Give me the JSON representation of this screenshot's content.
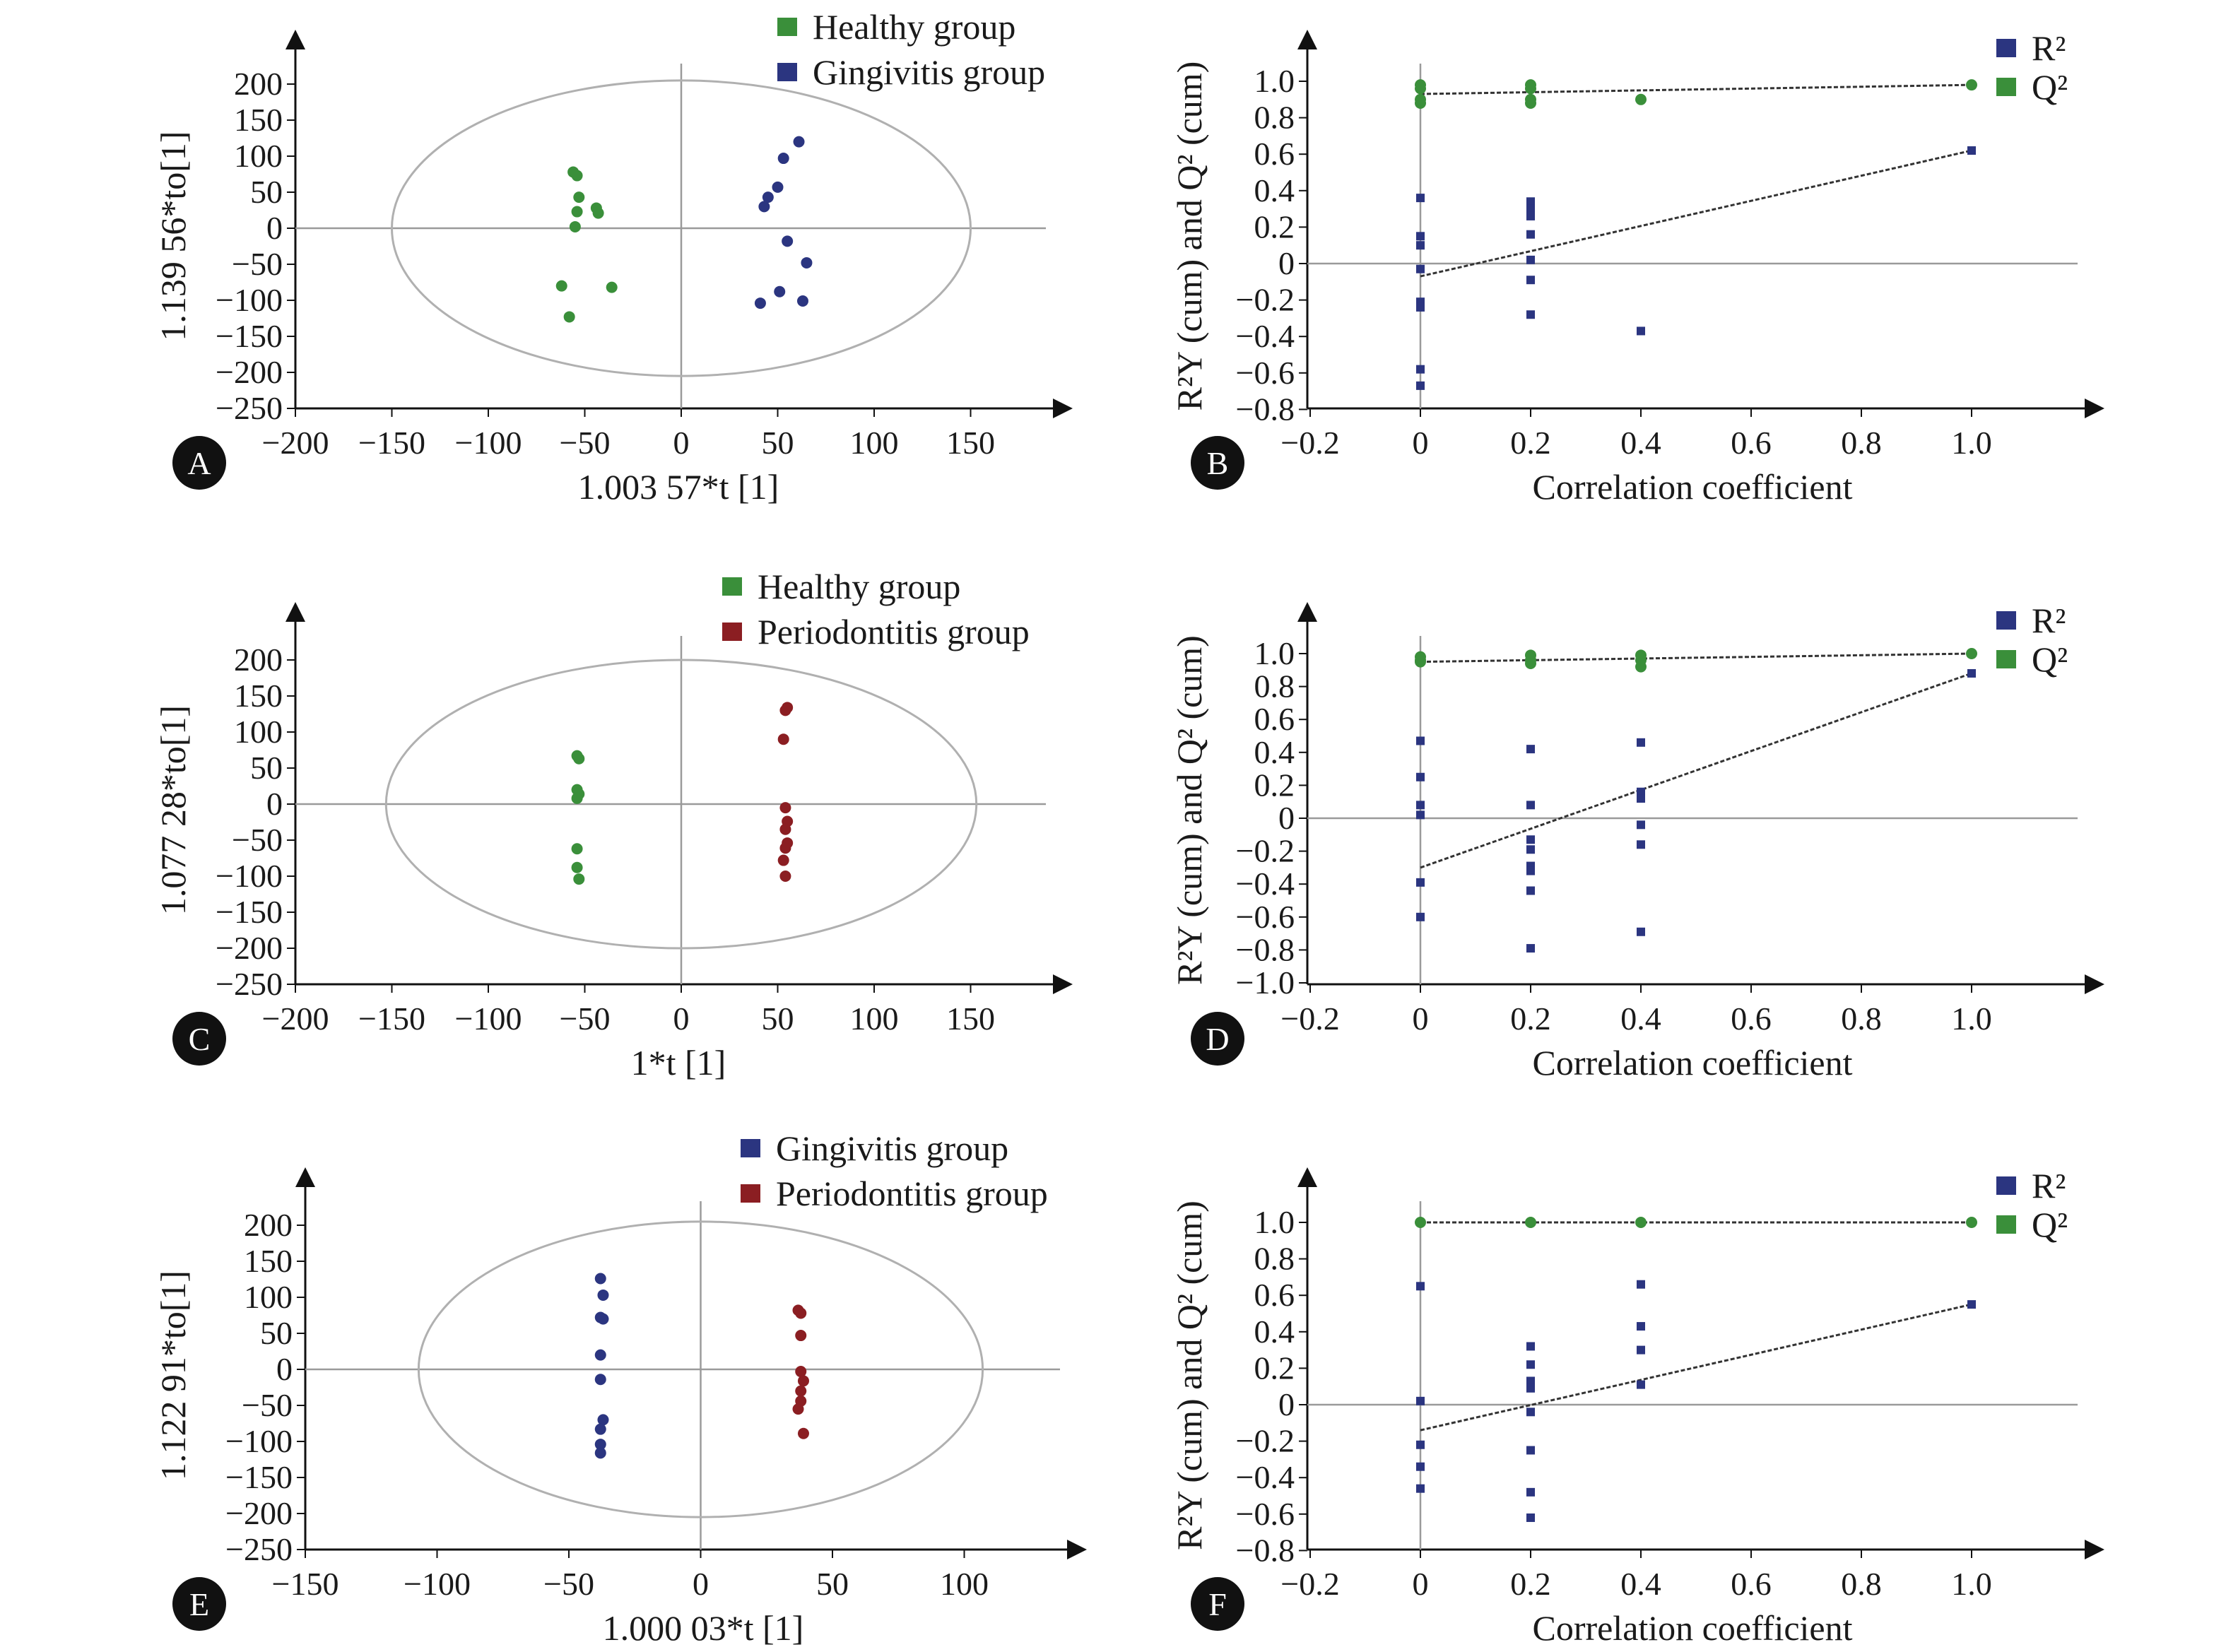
{
  "chart_data": [
    {
      "panel": "A",
      "type": "scatter",
      "xlabel": "1.003 57*t [1]",
      "ylabel": "1.139 56*to[1]",
      "xlim": [
        -200,
        190
      ],
      "ylim": [
        -250,
        240
      ],
      "xticks": [
        -200,
        -150,
        -100,
        -50,
        0,
        50,
        100,
        150
      ],
      "yticks": [
        200,
        150,
        100,
        50,
        0,
        -50,
        -100,
        -150,
        -200,
        -250
      ],
      "ellipse": {
        "rx": 150,
        "ry": 205
      },
      "legend_position": "top",
      "series": [
        {
          "name": "Healthy group",
          "color": "#3a8f3a",
          "points": [
            [
              -56,
              78
            ],
            [
              -54,
              73
            ],
            [
              -53,
              43
            ],
            [
              -54,
              23
            ],
            [
              -55,
              2
            ],
            [
              -44,
              28
            ],
            [
              -43,
              21
            ],
            [
              -62,
              -80
            ],
            [
              -58,
              -123
            ],
            [
              -36,
              -82
            ]
          ]
        },
        {
          "name": "Gingivitis group",
          "color": "#2b3580",
          "points": [
            [
              61,
              120
            ],
            [
              53,
              97
            ],
            [
              50,
              57
            ],
            [
              45,
              43
            ],
            [
              43,
              30
            ],
            [
              55,
              -18
            ],
            [
              65,
              -48
            ],
            [
              51,
              -88
            ],
            [
              41,
              -104
            ],
            [
              63,
              -101
            ]
          ]
        }
      ]
    },
    {
      "panel": "B",
      "type": "scatter",
      "xlabel": "Correlation coefficient",
      "ylabel": "R²Y (cum) and Q² (cum)",
      "xlim": [
        -0.25,
        1.18
      ],
      "ylim": [
        -0.8,
        1.12
      ],
      "xticks": [
        "−0.2",
        "0",
        "0.2",
        "0.4",
        "0.6",
        "0.8",
        "1.0"
      ],
      "yticks": [
        "1.0",
        "0.8",
        "0.6",
        "0.4",
        "0.2",
        "0",
        "−0.2",
        "−0.4",
        "−0.6",
        "−0.8"
      ],
      "legend_position": "top-right",
      "series": [
        {
          "name": "R²",
          "color": "#2b3580",
          "marker": "square",
          "points": [
            [
              0,
              0.36
            ],
            [
              0,
              0.15
            ],
            [
              0,
              0.1
            ],
            [
              0,
              -0.03
            ],
            [
              0,
              -0.21
            ],
            [
              0,
              -0.24
            ],
            [
              0,
              -0.58
            ],
            [
              0,
              -0.67
            ],
            [
              0.2,
              0.34
            ],
            [
              0.2,
              0.3
            ],
            [
              0.2,
              0.26
            ],
            [
              0.2,
              0.16
            ],
            [
              0.2,
              0.02
            ],
            [
              0.2,
              -0.09
            ],
            [
              0.2,
              -0.28
            ],
            [
              0.4,
              -0.37
            ],
            [
              1.0,
              0.62
            ]
          ],
          "regression": [
            [
              0,
              -0.07
            ],
            [
              1.0,
              0.62
            ]
          ]
        },
        {
          "name": "Q²",
          "color": "#3a8f3a",
          "marker": "circle",
          "points": [
            [
              0,
              0.98
            ],
            [
              0,
              0.96
            ],
            [
              0,
              0.9
            ],
            [
              0,
              0.88
            ],
            [
              0.2,
              0.98
            ],
            [
              0.2,
              0.96
            ],
            [
              0.2,
              0.9
            ],
            [
              0.2,
              0.88
            ],
            [
              0.4,
              0.9
            ],
            [
              1.0,
              0.98
            ]
          ],
          "regression": [
            [
              0,
              0.93
            ],
            [
              1.0,
              0.98
            ]
          ]
        }
      ]
    },
    {
      "panel": "C",
      "type": "scatter",
      "xlabel": "1*t [1]",
      "ylabel": "1.077 28*to[1]",
      "xlim": [
        -200,
        190
      ],
      "ylim": [
        -250,
        240
      ],
      "xticks": [
        -200,
        -150,
        -100,
        -50,
        0,
        50,
        100,
        150
      ],
      "yticks": [
        200,
        150,
        100,
        50,
        0,
        -50,
        -100,
        -150,
        -200,
        -250
      ],
      "ellipse": {
        "rx": 153,
        "ry": 200
      },
      "legend_position": "top",
      "series": [
        {
          "name": "Healthy group",
          "color": "#3a8f3a",
          "points": [
            [
              -54,
              67
            ],
            [
              -53,
              63
            ],
            [
              -54,
              20
            ],
            [
              -53,
              14
            ],
            [
              -54,
              8
            ],
            [
              -54,
              -62
            ],
            [
              -54,
              -88
            ],
            [
              -53,
              -104
            ]
          ]
        },
        {
          "name": "Periodontitis group",
          "color": "#8b1e22",
          "points": [
            [
              55,
              134
            ],
            [
              54,
              130
            ],
            [
              53,
              90
            ],
            [
              54,
              -5
            ],
            [
              55,
              -24
            ],
            [
              54,
              -35
            ],
            [
              55,
              -54
            ],
            [
              54,
              -61
            ],
            [
              53,
              -78
            ],
            [
              54,
              -100
            ]
          ]
        }
      ]
    },
    {
      "panel": "D",
      "type": "scatter",
      "xlabel": "Correlation coefficient",
      "ylabel": "R²Y (cum) and Q² (cum)",
      "xlim": [
        -0.25,
        1.18
      ],
      "ylim": [
        -1.0,
        1.12
      ],
      "xticks": [
        "−0.2",
        "0",
        "0.2",
        "0.4",
        "0.6",
        "0.8",
        "1.0"
      ],
      "yticks": [
        "1.0",
        "0.8",
        "0.6",
        "0.4",
        "0.2",
        "0",
        "−0.2",
        "−0.4",
        "−0.6",
        "−0.8",
        "−1.0"
      ],
      "legend_position": "top-right",
      "series": [
        {
          "name": "R²",
          "color": "#2b3580",
          "marker": "square",
          "points": [
            [
              0,
              0.47
            ],
            [
              0,
              0.25
            ],
            [
              0,
              0.08
            ],
            [
              0,
              0.02
            ],
            [
              0,
              -0.39
            ],
            [
              0,
              -0.6
            ],
            [
              0.2,
              0.42
            ],
            [
              0.2,
              0.08
            ],
            [
              0.2,
              -0.13
            ],
            [
              0.2,
              -0.19
            ],
            [
              0.2,
              -0.29
            ],
            [
              0.2,
              -0.32
            ],
            [
              0.2,
              -0.44
            ],
            [
              0.2,
              -0.79
            ],
            [
              0.4,
              0.46
            ],
            [
              0.4,
              0.16
            ],
            [
              0.4,
              0.12
            ],
            [
              0.4,
              -0.04
            ],
            [
              0.4,
              -0.16
            ],
            [
              0.4,
              -0.69
            ],
            [
              1.0,
              0.88
            ]
          ],
          "regression": [
            [
              0,
              -0.3
            ],
            [
              1.0,
              0.88
            ]
          ]
        },
        {
          "name": "Q²",
          "color": "#3a8f3a",
          "marker": "circle",
          "points": [
            [
              0,
              0.98
            ],
            [
              0,
              0.96
            ],
            [
              0,
              0.95
            ],
            [
              0.2,
              0.99
            ],
            [
              0.2,
              0.96
            ],
            [
              0.2,
              0.94
            ],
            [
              0.4,
              0.99
            ],
            [
              0.4,
              0.96
            ],
            [
              0.4,
              0.92
            ],
            [
              1.0,
              1.0
            ]
          ],
          "regression": [
            [
              0,
              0.95
            ],
            [
              1.0,
              1.0
            ]
          ]
        }
      ]
    },
    {
      "panel": "E",
      "type": "scatter",
      "xlabel": "1.000 03*t [1]",
      "ylabel": "1.122 91*to[1]",
      "xlim": [
        -150,
        140
      ],
      "ylim": [
        -250,
        240
      ],
      "xticks": [
        -150,
        -100,
        -50,
        0,
        50,
        100
      ],
      "yticks": [
        200,
        150,
        100,
        50,
        0,
        -50,
        -100,
        -150,
        -200,
        -250
      ],
      "ellipse": {
        "rx": 107,
        "ry": 205
      },
      "legend_position": "top",
      "series": [
        {
          "name": "Gingivitis group",
          "color": "#2b3580",
          "points": [
            [
              -38,
              126
            ],
            [
              -37,
              103
            ],
            [
              -38,
              72
            ],
            [
              -37,
              70
            ],
            [
              -38,
              20
            ],
            [
              -38,
              -14
            ],
            [
              -37,
              -70
            ],
            [
              -38,
              -83
            ],
            [
              -38,
              -104
            ],
            [
              -38,
              -116
            ]
          ]
        },
        {
          "name": "Periodontitis group",
          "color": "#8b1e22",
          "points": [
            [
              37,
              82
            ],
            [
              38,
              78
            ],
            [
              38,
              47
            ],
            [
              38,
              -3
            ],
            [
              39,
              -16
            ],
            [
              38,
              -30
            ],
            [
              38,
              -44
            ],
            [
              37,
              -55
            ],
            [
              39,
              -89
            ]
          ]
        }
      ]
    },
    {
      "panel": "F",
      "type": "scatter",
      "xlabel": "Correlation coefficient",
      "ylabel": "R²Y (cum) and Q² (cum)",
      "xlim": [
        -0.25,
        1.18
      ],
      "ylim": [
        -0.8,
        1.12
      ],
      "xticks": [
        "−0.2",
        "0",
        "0.2",
        "0.4",
        "0.6",
        "0.8",
        "1.0"
      ],
      "yticks": [
        "1.0",
        "0.8",
        "0.6",
        "0.4",
        "0.2",
        "0",
        "−0.2",
        "−0.4",
        "−0.6",
        "−0.8"
      ],
      "legend_position": "top-right",
      "series": [
        {
          "name": "R²",
          "color": "#2b3580",
          "marker": "square",
          "points": [
            [
              0,
              0.65
            ],
            [
              0,
              0.02
            ],
            [
              0,
              -0.22
            ],
            [
              0,
              -0.34
            ],
            [
              0,
              -0.46
            ],
            [
              0.2,
              0.32
            ],
            [
              0.2,
              0.22
            ],
            [
              0.2,
              0.13
            ],
            [
              0.2,
              0.09
            ],
            [
              0.2,
              -0.04
            ],
            [
              0.2,
              -0.25
            ],
            [
              0.2,
              -0.48
            ],
            [
              0.2,
              -0.62
            ],
            [
              0.4,
              0.66
            ],
            [
              0.4,
              0.43
            ],
            [
              0.4,
              0.3
            ],
            [
              0.4,
              0.11
            ],
            [
              1.0,
              0.55
            ]
          ],
          "regression": [
            [
              0,
              -0.14
            ],
            [
              1.0,
              0.55
            ]
          ]
        },
        {
          "name": "Q²",
          "color": "#3a8f3a",
          "marker": "circle",
          "points": [
            [
              0,
              1.0
            ],
            [
              0.2,
              1.0
            ],
            [
              0.4,
              1.0
            ],
            [
              1.0,
              1.0
            ]
          ],
          "regression": [
            [
              0,
              1.0
            ],
            [
              1.0,
              1.0
            ]
          ]
        }
      ]
    }
  ]
}
